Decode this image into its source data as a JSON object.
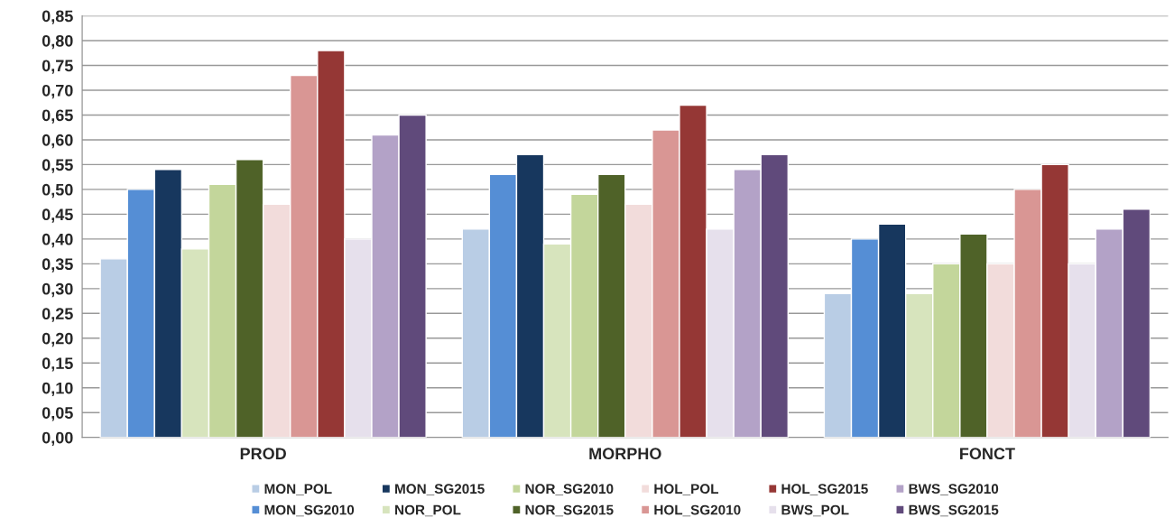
{
  "chart_data": {
    "type": "bar",
    "categories": [
      "PROD",
      "MORPHO",
      "FONCT"
    ],
    "series": [
      {
        "name": "MON_POL",
        "color": "#b9cde5",
        "values": [
          0.36,
          0.42,
          0.29
        ]
      },
      {
        "name": "MON_SG2010",
        "color": "#558ed5",
        "values": [
          0.5,
          0.53,
          0.4
        ]
      },
      {
        "name": "MON_SG2015",
        "color": "#17375e",
        "values": [
          0.54,
          0.57,
          0.43
        ]
      },
      {
        "name": "NOR_POL",
        "color": "#d7e4bd",
        "values": [
          0.38,
          0.39,
          0.29
        ]
      },
      {
        "name": "NOR_SG2010",
        "color": "#c3d69b",
        "values": [
          0.51,
          0.49,
          0.35
        ]
      },
      {
        "name": "NOR_SG2015",
        "color": "#4f6228",
        "values": [
          0.56,
          0.53,
          0.41
        ]
      },
      {
        "name": "HOL_POL",
        "color": "#f2dcdb",
        "values": [
          0.47,
          0.47,
          0.35
        ]
      },
      {
        "name": "HOL_SG2010",
        "color": "#d99694",
        "values": [
          0.73,
          0.62,
          0.5
        ]
      },
      {
        "name": "HOL_SG2015",
        "color": "#953735",
        "values": [
          0.78,
          0.67,
          0.55
        ]
      },
      {
        "name": "BWS_POL",
        "color": "#e6e0ec",
        "values": [
          0.4,
          0.42,
          0.35
        ]
      },
      {
        "name": "BWS_SG2010",
        "color": "#b3a2c7",
        "values": [
          0.61,
          0.54,
          0.42
        ]
      },
      {
        "name": "BWS_SG2015",
        "color": "#604a7b",
        "values": [
          0.65,
          0.57,
          0.46
        ]
      }
    ],
    "ylim": [
      0,
      0.85
    ],
    "yticks": [
      {
        "value": 0,
        "label": "0,00"
      },
      {
        "value": 0.05,
        "label": "0,05"
      },
      {
        "value": 0.1,
        "label": "0,10"
      },
      {
        "value": 0.15,
        "label": "0,15"
      },
      {
        "value": 0.2,
        "label": "0,20"
      },
      {
        "value": 0.25,
        "label": "0,25"
      },
      {
        "value": 0.3,
        "label": "0,30"
      },
      {
        "value": 0.35,
        "label": "0,35"
      },
      {
        "value": 0.4,
        "label": "0,40"
      },
      {
        "value": 0.45,
        "label": "0,45"
      },
      {
        "value": 0.5,
        "label": "0,50"
      },
      {
        "value": 0.55,
        "label": "0,55"
      },
      {
        "value": 0.6,
        "label": "0,60"
      },
      {
        "value": 0.65,
        "label": "0,65"
      },
      {
        "value": 0.7,
        "label": "0,70"
      },
      {
        "value": 0.75,
        "label": "0,75"
      },
      {
        "value": 0.8,
        "label": "0,80"
      },
      {
        "value": 0.85,
        "label": "0,85"
      }
    ],
    "grid": "y",
    "legend": "bottom"
  }
}
